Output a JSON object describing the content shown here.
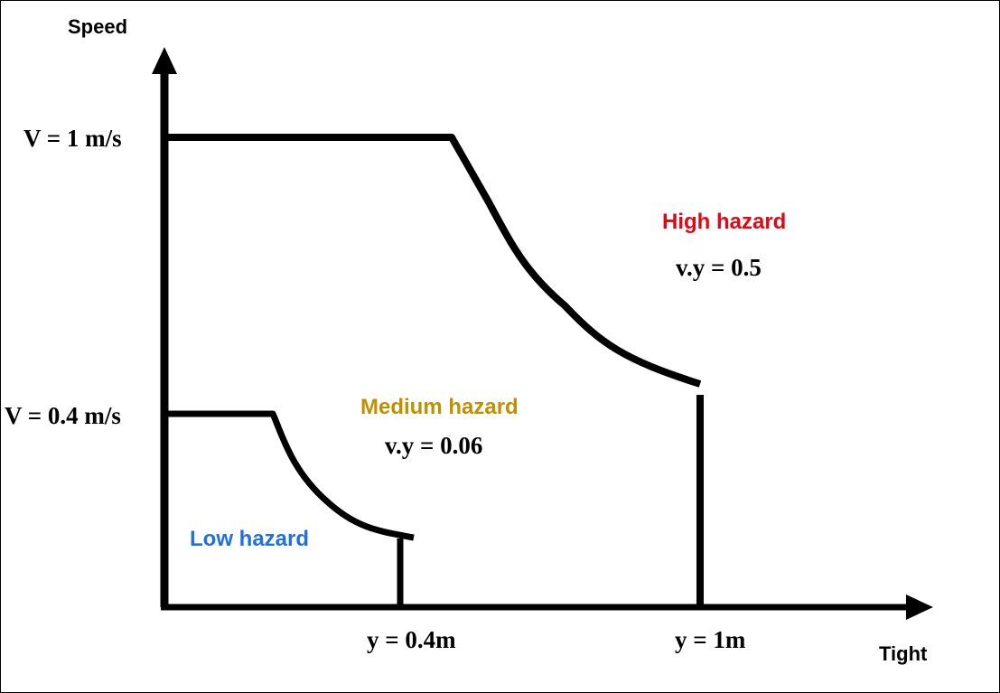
{
  "axes": {
    "y_title": "Speed",
    "x_title": "Tight",
    "y_tick_1": "V = 1 m/s",
    "y_tick_04": "V = 0.4 m/s",
    "x_tick_04": "y = 0.4m",
    "x_tick_1": "y = 1m"
  },
  "zones": {
    "high": {
      "label": "High hazard",
      "formula": "v.y = 0.5",
      "color": "#e30613"
    },
    "medium": {
      "label": "Medium hazard",
      "formula": "v.y = 0.06",
      "color": "#c09000"
    },
    "low": {
      "label": "Low hazard",
      "color": "#1f6fe6"
    }
  }
}
